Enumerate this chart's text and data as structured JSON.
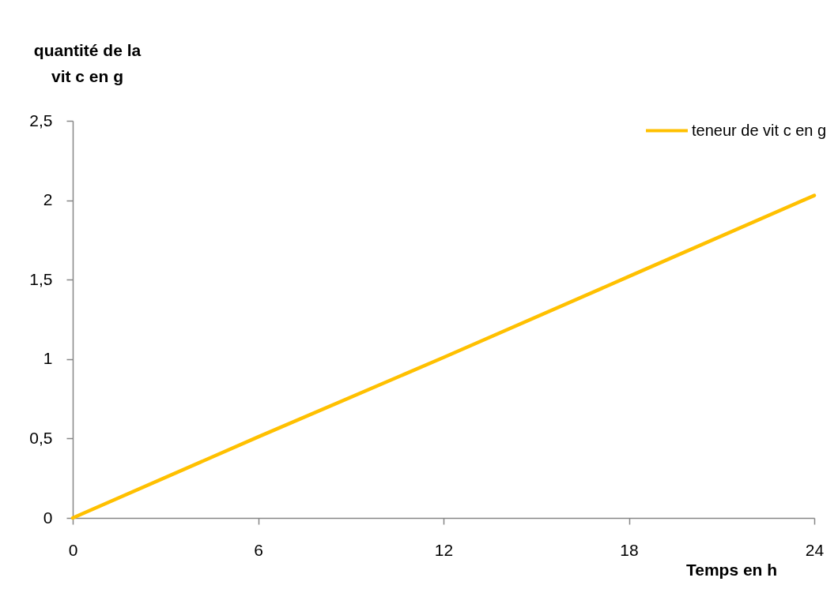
{
  "chart_data": {
    "type": "line",
    "xlabel": "Temps en h",
    "ylabel": "quantité de la\nvit c en g",
    "x": [
      0,
      6,
      12,
      18,
      24
    ],
    "series": [
      {
        "name": "teneur de vit c en g",
        "color": "#ffc000",
        "values": [
          0,
          0.51,
          1.01,
          1.52,
          2.03
        ]
      }
    ],
    "xlim": [
      0,
      24
    ],
    "xticks": [
      0,
      6,
      12,
      18,
      24
    ],
    "ylim": [
      0,
      2.5
    ],
    "yticks": [
      0,
      {
        "value": 0.5,
        "label": "0,5"
      },
      1,
      {
        "value": 1.5,
        "label": "1,5"
      },
      2,
      {
        "value": 2.5,
        "label": "2,5"
      }
    ],
    "grid": false,
    "legend": "top right",
    "marker": "none",
    "line_style": "solid"
  }
}
